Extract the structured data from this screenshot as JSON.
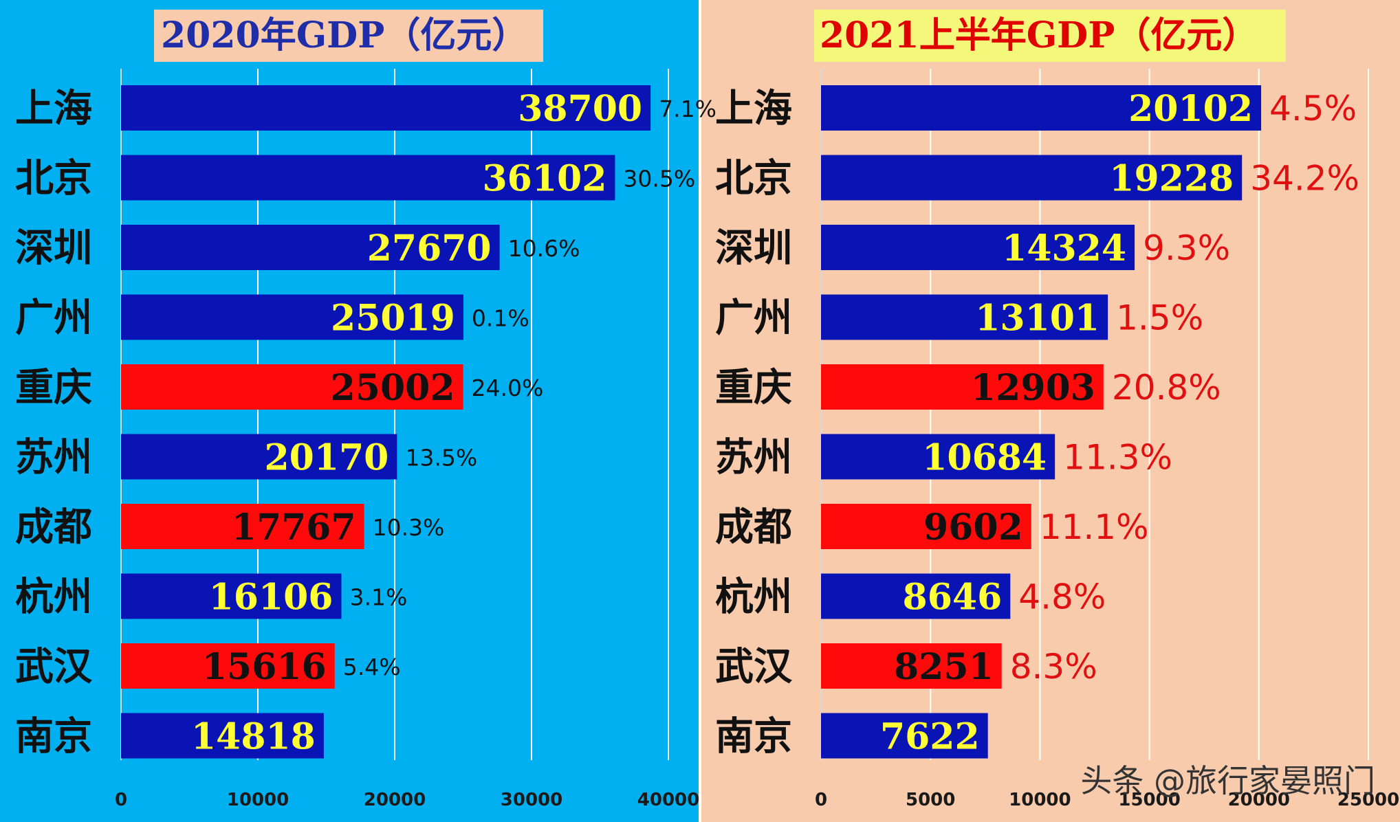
{
  "chart_data": [
    {
      "type": "bar",
      "title": "2020年GDP（亿元）",
      "categories": [
        "上海",
        "北京",
        "深圳",
        "广州",
        "重庆",
        "苏州",
        "成都",
        "杭州",
        "武汉",
        "南京"
      ],
      "values": [
        38700,
        36102,
        27670,
        25019,
        25002,
        20170,
        17767,
        16106,
        15616,
        14818
      ],
      "growth_labels": [
        "7.1%",
        "30.5%",
        "10.6%",
        "0.1%",
        "24.0%",
        "13.5%",
        "10.3%",
        "3.1%",
        "5.4%",
        ""
      ],
      "bar_colors": [
        "#0a14b4",
        "#0a14b4",
        "#0a14b4",
        "#0a14b4",
        "#ff0a0a",
        "#0a14b4",
        "#ff0a0a",
        "#0a14b4",
        "#ff0a0a",
        "#0a14b4"
      ],
      "xlim": [
        0,
        40000
      ],
      "xticks": [
        "0",
        "10000",
        "20000",
        "30000",
        "40000"
      ],
      "grid": true
    },
    {
      "type": "bar",
      "title": "2021上半年GDP（亿元）",
      "categories": [
        "上海",
        "北京",
        "深圳",
        "广州",
        "重庆",
        "苏州",
        "成都",
        "杭州",
        "武汉",
        "南京"
      ],
      "values": [
        20102,
        19228,
        14324,
        13101,
        12903,
        10684,
        9602,
        8646,
        8251,
        7622
      ],
      "growth_labels": [
        "4.5%",
        "34.2%",
        "9.3%",
        "1.5%",
        "20.8%",
        "11.3%",
        "11.1%",
        "4.8%",
        "8.3%",
        ""
      ],
      "bar_colors": [
        "#0a14b4",
        "#0a14b4",
        "#0a14b4",
        "#0a14b4",
        "#ff0a0a",
        "#0a14b4",
        "#ff0a0a",
        "#0a14b4",
        "#ff0a0a",
        "#0a14b4"
      ],
      "xlim": [
        0,
        25000
      ],
      "xticks": [
        "0",
        "5000",
        "10000",
        "15000",
        "20000",
        "25000"
      ],
      "grid": true
    }
  ],
  "colors": {
    "left_bg": "#00b0f0",
    "right_bg": "#f8cbad",
    "value_on_blue": "#ffff33",
    "value_on_red": "#111111",
    "growth_left": "#111111",
    "growth_right": "#e01010"
  },
  "watermark": "头条 @旅行家晏照门"
}
